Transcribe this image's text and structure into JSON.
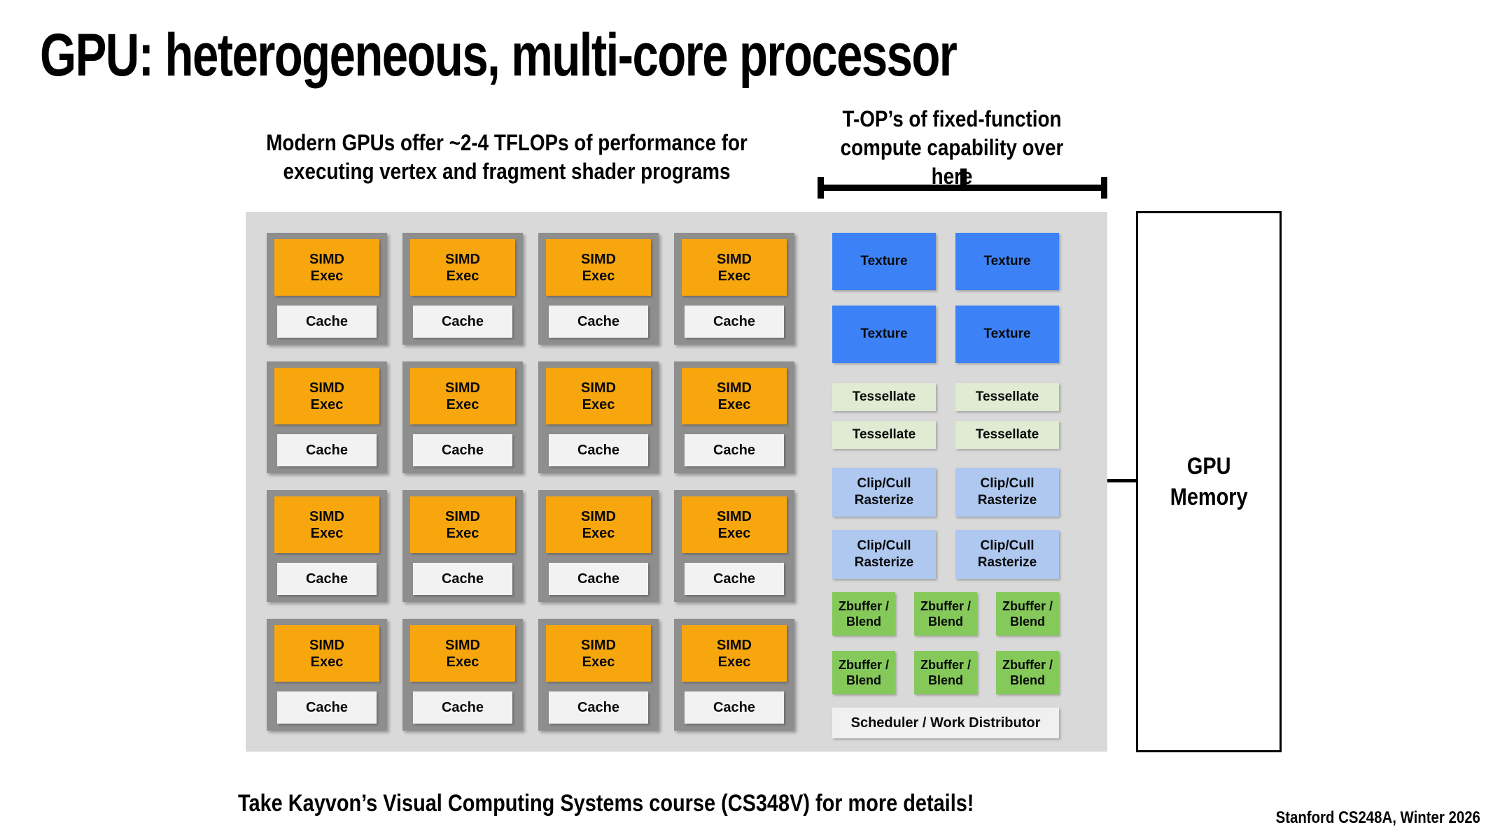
{
  "slide": {
    "title": "GPU: heterogeneous, multi-core processor",
    "subtitle": "Modern GPUs offer ~2-4 TFLOPs of performance for\nexecuting vertex and fragment shader programs",
    "fixed_function_note": "T-OP’s of fixed-function\ncompute capability over here",
    "footer_note": "Take Kayvon’s Visual Computing Systems course (CS348V) for more details!",
    "credit": "Stanford CS248A, Winter 2026"
  },
  "blocks": {
    "simd_label": "SIMD\nExec",
    "cache_label": "Cache"
  },
  "fixed_function": {
    "texture_label": "Texture",
    "tessellate_label": "Tessellate",
    "clip_label": "Clip/Cull\nRasterize",
    "zbuffer_label": "Zbuffer /\nBlend",
    "scheduler_label": "Scheduler / Work Distributor"
  },
  "memory": {
    "label": "GPU\nMemory"
  },
  "colors": {
    "panel_background": "#d9d9d9",
    "core_container": "#8e8e8e",
    "simd_orange": "#f7a60e",
    "cache_gray": "#f2f2f2",
    "texture_blue": "#3c82f6",
    "tessellate_green": "#dfebd3",
    "clip_periwinkle": "#aec8f0",
    "zbuffer_green": "#85c95b",
    "scheduler_gray": "#f0f0f0"
  }
}
